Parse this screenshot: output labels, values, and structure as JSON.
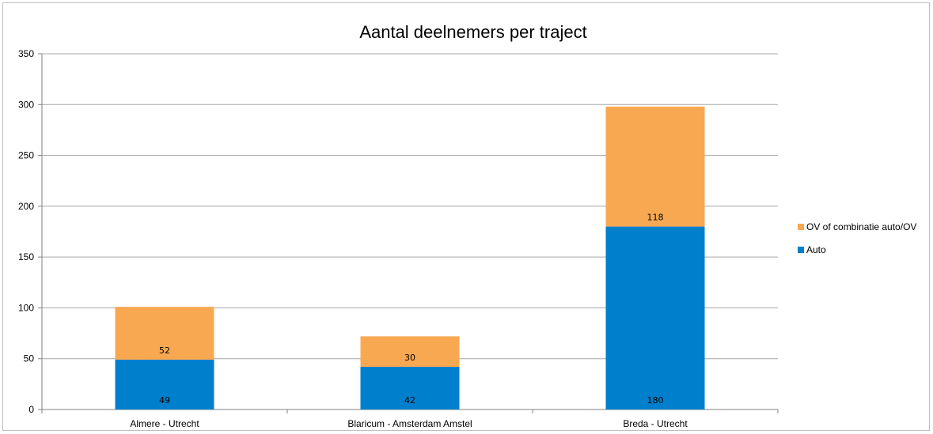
{
  "chart_data": {
    "type": "bar",
    "stacked": true,
    "title": "Aantal deelnemers per traject",
    "xlabel": "",
    "ylabel": "",
    "categories": [
      "Almere - Utrecht",
      "Blaricum - Amsterdam Amstel",
      "Breda - Utrecht"
    ],
    "series": [
      {
        "name": "Auto",
        "values": [
          49,
          42,
          180
        ],
        "color": "#0080CC"
      },
      {
        "name": "OV of combinatie auto/OV",
        "values": [
          52,
          30,
          118
        ],
        "color": "#F9A852"
      }
    ],
    "ylim": [
      0,
      350
    ],
    "yticks": [
      0,
      50,
      100,
      150,
      200,
      250,
      300,
      350
    ],
    "grid": true,
    "gridColor": "#a6a6a6",
    "legend": {
      "position": "right",
      "entries": [
        "OV of combinatie auto/OV",
        "Auto"
      ]
    },
    "data_labels": true
  }
}
